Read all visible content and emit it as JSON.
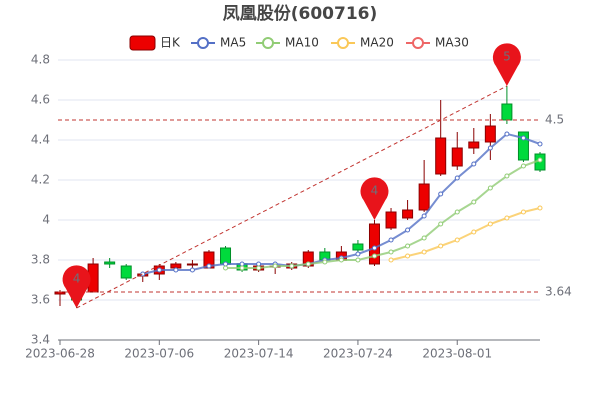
{
  "chart_data": {
    "type": "candlestick",
    "title": "凤凰股份(600716)",
    "categories": [
      "2023-06-28",
      null,
      null,
      null,
      null,
      null,
      "2023-07-06",
      null,
      null,
      null,
      null,
      null,
      "2023-07-14",
      null,
      null,
      null,
      null,
      null,
      "2023-07-24",
      null,
      null,
      null,
      null,
      null,
      "2023-08-01",
      null,
      null,
      null,
      null,
      null
    ],
    "candles": {
      "name": "日K",
      "color_up": "#ec0000",
      "color_down": "#00da3c",
      "border_up": "#8a0000",
      "border_down": "#008f28",
      "open": [
        3.63,
        3.62,
        3.64,
        3.79,
        3.77,
        3.72,
        3.73,
        3.76,
        3.78,
        3.76,
        3.86,
        3.78,
        3.75,
        3.77,
        3.76,
        3.77,
        3.84,
        3.8,
        3.88,
        3.78,
        3.96,
        4.01,
        4.05,
        4.23,
        4.27,
        4.36,
        4.39,
        4.58,
        4.44,
        4.33
      ],
      "close": [
        3.64,
        3.6,
        3.78,
        3.78,
        3.71,
        3.73,
        3.77,
        3.78,
        3.78,
        3.84,
        3.78,
        3.75,
        3.77,
        3.77,
        3.78,
        3.84,
        3.8,
        3.84,
        3.85,
        3.98,
        4.04,
        4.05,
        4.18,
        4.41,
        4.36,
        4.39,
        4.47,
        4.5,
        4.3,
        4.25
      ],
      "low": [
        3.57,
        3.56,
        3.64,
        3.76,
        3.7,
        3.69,
        3.7,
        3.75,
        3.76,
        3.76,
        3.77,
        3.74,
        3.74,
        3.73,
        3.75,
        3.76,
        3.79,
        3.79,
        3.84,
        3.77,
        3.95,
        4.0,
        4.04,
        4.22,
        4.25,
        4.33,
        4.3,
        4.48,
        4.29,
        4.24
      ],
      "high": [
        3.65,
        3.66,
        3.81,
        3.81,
        3.78,
        3.74,
        3.78,
        3.79,
        3.8,
        3.85,
        3.87,
        3.79,
        3.78,
        3.79,
        3.79,
        3.85,
        3.86,
        3.87,
        3.9,
        4.0,
        4.06,
        4.1,
        4.3,
        4.6,
        4.44,
        4.46,
        4.53,
        4.67,
        4.44,
        4.34
      ]
    },
    "series": [
      {
        "name": "MA5",
        "color": "#5470c6",
        "values": [
          null,
          null,
          null,
          null,
          null,
          3.73,
          3.75,
          3.75,
          3.75,
          3.77,
          3.78,
          3.78,
          3.78,
          3.78,
          3.77,
          3.78,
          3.8,
          3.81,
          3.83,
          3.86,
          3.9,
          3.95,
          4.02,
          4.13,
          4.21,
          4.28,
          4.36,
          4.43,
          4.41,
          4.38
        ]
      },
      {
        "name": "MA10",
        "color": "#91cc75",
        "values": [
          null,
          null,
          null,
          null,
          null,
          null,
          null,
          null,
          null,
          null,
          3.76,
          3.76,
          3.76,
          3.77,
          3.77,
          3.78,
          3.79,
          3.8,
          3.8,
          3.82,
          3.84,
          3.87,
          3.91,
          3.98,
          4.04,
          4.09,
          4.16,
          4.22,
          4.27,
          4.3
        ]
      },
      {
        "name": "MA20",
        "color": "#fac858",
        "values": [
          null,
          null,
          null,
          null,
          null,
          null,
          null,
          null,
          null,
          null,
          null,
          null,
          null,
          null,
          null,
          null,
          null,
          null,
          null,
          null,
          3.8,
          3.82,
          3.84,
          3.87,
          3.9,
          3.94,
          3.98,
          4.01,
          4.04,
          4.06
        ]
      },
      {
        "name": "MA30",
        "color": "#ee6666",
        "values": [
          null,
          null,
          null,
          null,
          null,
          null,
          null,
          null,
          null,
          null,
          null,
          null,
          null,
          null,
          null,
          null,
          null,
          null,
          null,
          null,
          null,
          null,
          null,
          null,
          null,
          null,
          null,
          null,
          null,
          null
        ]
      }
    ],
    "ylim": [
      3.4,
      4.8
    ],
    "yticks": [
      3.4,
      3.6,
      3.8,
      4,
      4.2,
      4.4,
      4.6,
      4.8
    ],
    "grid": true,
    "reference_lines": [
      4.5,
      3.64
    ],
    "reference_color": "#c23531",
    "pins": [
      {
        "text": "4",
        "index": 1,
        "anchor": "low"
      },
      {
        "text": "4",
        "index": 19,
        "anchor": "high"
      },
      {
        "text": "5",
        "index": 27,
        "anchor": "high"
      }
    ],
    "trend_line": {
      "from": 1,
      "to": 27
    }
  }
}
